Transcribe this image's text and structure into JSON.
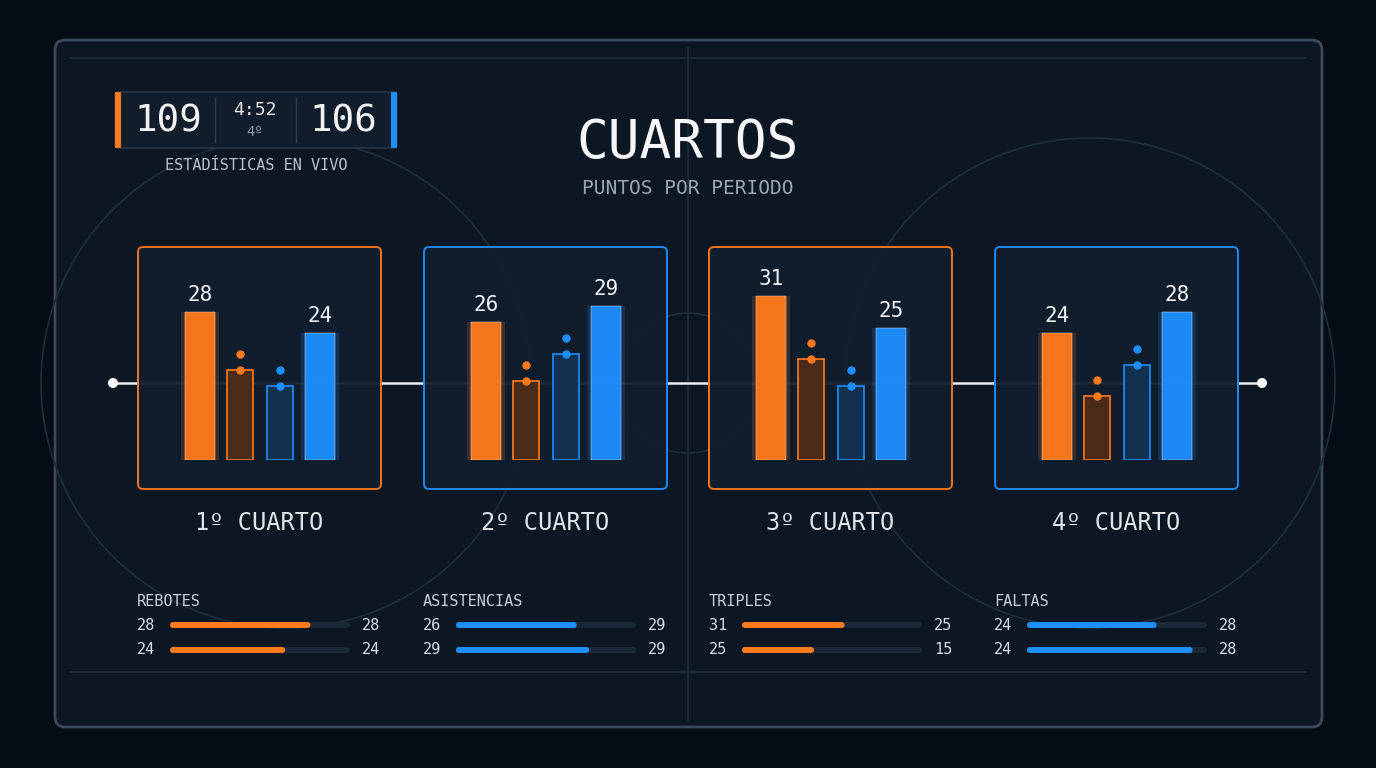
{
  "scoreboard": {
    "home_score": 109,
    "clock": "4:52",
    "period": "4º",
    "away_score": 106,
    "label": "ESTADÍSTICAS EN VIVO",
    "home_color": "#ff7a1a",
    "away_color": "#1e8fff"
  },
  "title": "CUARTOS",
  "subtitle": "PUNTOS POR PERIODO",
  "chart_data": [
    {
      "type": "bar",
      "title": "1º CUARTO",
      "color": "#ff7a1a",
      "categories": [
        null,
        null,
        null,
        null
      ],
      "values": [
        28,
        17,
        14,
        24
      ],
      "value_labels": [
        "28",
        null,
        null,
        "24"
      ],
      "data_labels": true,
      "colors": [
        "#ff7a1a",
        "#4a2a18",
        "#12304f",
        "#1e8fff"
      ],
      "ylim": [
        0,
        40
      ],
      "yticks": [],
      "tick_labels": false
    },
    {
      "type": "bar",
      "title": "2º CUARTO",
      "color": "#1e8fff",
      "categories": [
        null,
        null,
        null,
        null
      ],
      "values": [
        26,
        15,
        20,
        29
      ],
      "value_labels": [
        "26",
        null,
        null,
        "29"
      ],
      "data_labels": true,
      "colors": [
        "#ff7a1a",
        "#4a2a18",
        "#12304f",
        "#1e8fff"
      ],
      "ylim": [
        0,
        40
      ],
      "yticks": [],
      "tick_labels": false
    },
    {
      "type": "bar",
      "title": "3º CUARTO",
      "color": "#ff7a1a",
      "categories": [
        null,
        null,
        null,
        null
      ],
      "values": [
        31,
        19,
        14,
        25
      ],
      "value_labels": [
        "31",
        null,
        null,
        "25"
      ],
      "data_labels": true,
      "colors": [
        "#ff7a1a",
        "#4a2a18",
        "#12304f",
        "#1e8fff"
      ],
      "ylim": [
        0,
        40
      ],
      "yticks": [],
      "tick_labels": false
    },
    {
      "type": "bar",
      "title": "4º CUARTO",
      "color": "#1e8fff",
      "categories": [
        null,
        null,
        null,
        null
      ],
      "values": [
        24,
        12,
        18,
        28
      ],
      "value_labels": [
        "24",
        null,
        null,
        "28"
      ],
      "data_labels": true,
      "colors": [
        "#ff7a1a",
        "#4a2a18",
        "#12304f",
        "#1e8fff"
      ],
      "ylim": [
        0,
        40
      ],
      "yticks": [],
      "tick_labels": false
    }
  ],
  "stats": [
    {
      "title": "REBOTES",
      "color": "#ff7a1a",
      "rows": [
        {
          "left": 28,
          "right": 28,
          "fill": 78
        },
        {
          "left": 24,
          "right": 24,
          "fill": 64
        }
      ]
    },
    {
      "title": "ASISTENCIAS",
      "color": "#1e8fff",
      "rows": [
        {
          "left": 26,
          "right": 29,
          "fill": 67
        },
        {
          "left": 29,
          "right": 29,
          "fill": 74
        }
      ]
    },
    {
      "title": "TRIPLES",
      "color": "#ff7a1a",
      "rows": [
        {
          "left": 31,
          "right": 25,
          "fill": 57
        },
        {
          "left": 25,
          "right": 15,
          "fill": 40
        }
      ]
    },
    {
      "title": "FALTAS",
      "color": "#1e8fff",
      "rows": [
        {
          "left": 24,
          "right": 28,
          "fill": 72
        },
        {
          "left": 24,
          "right": 28,
          "fill": 92
        }
      ]
    }
  ]
}
